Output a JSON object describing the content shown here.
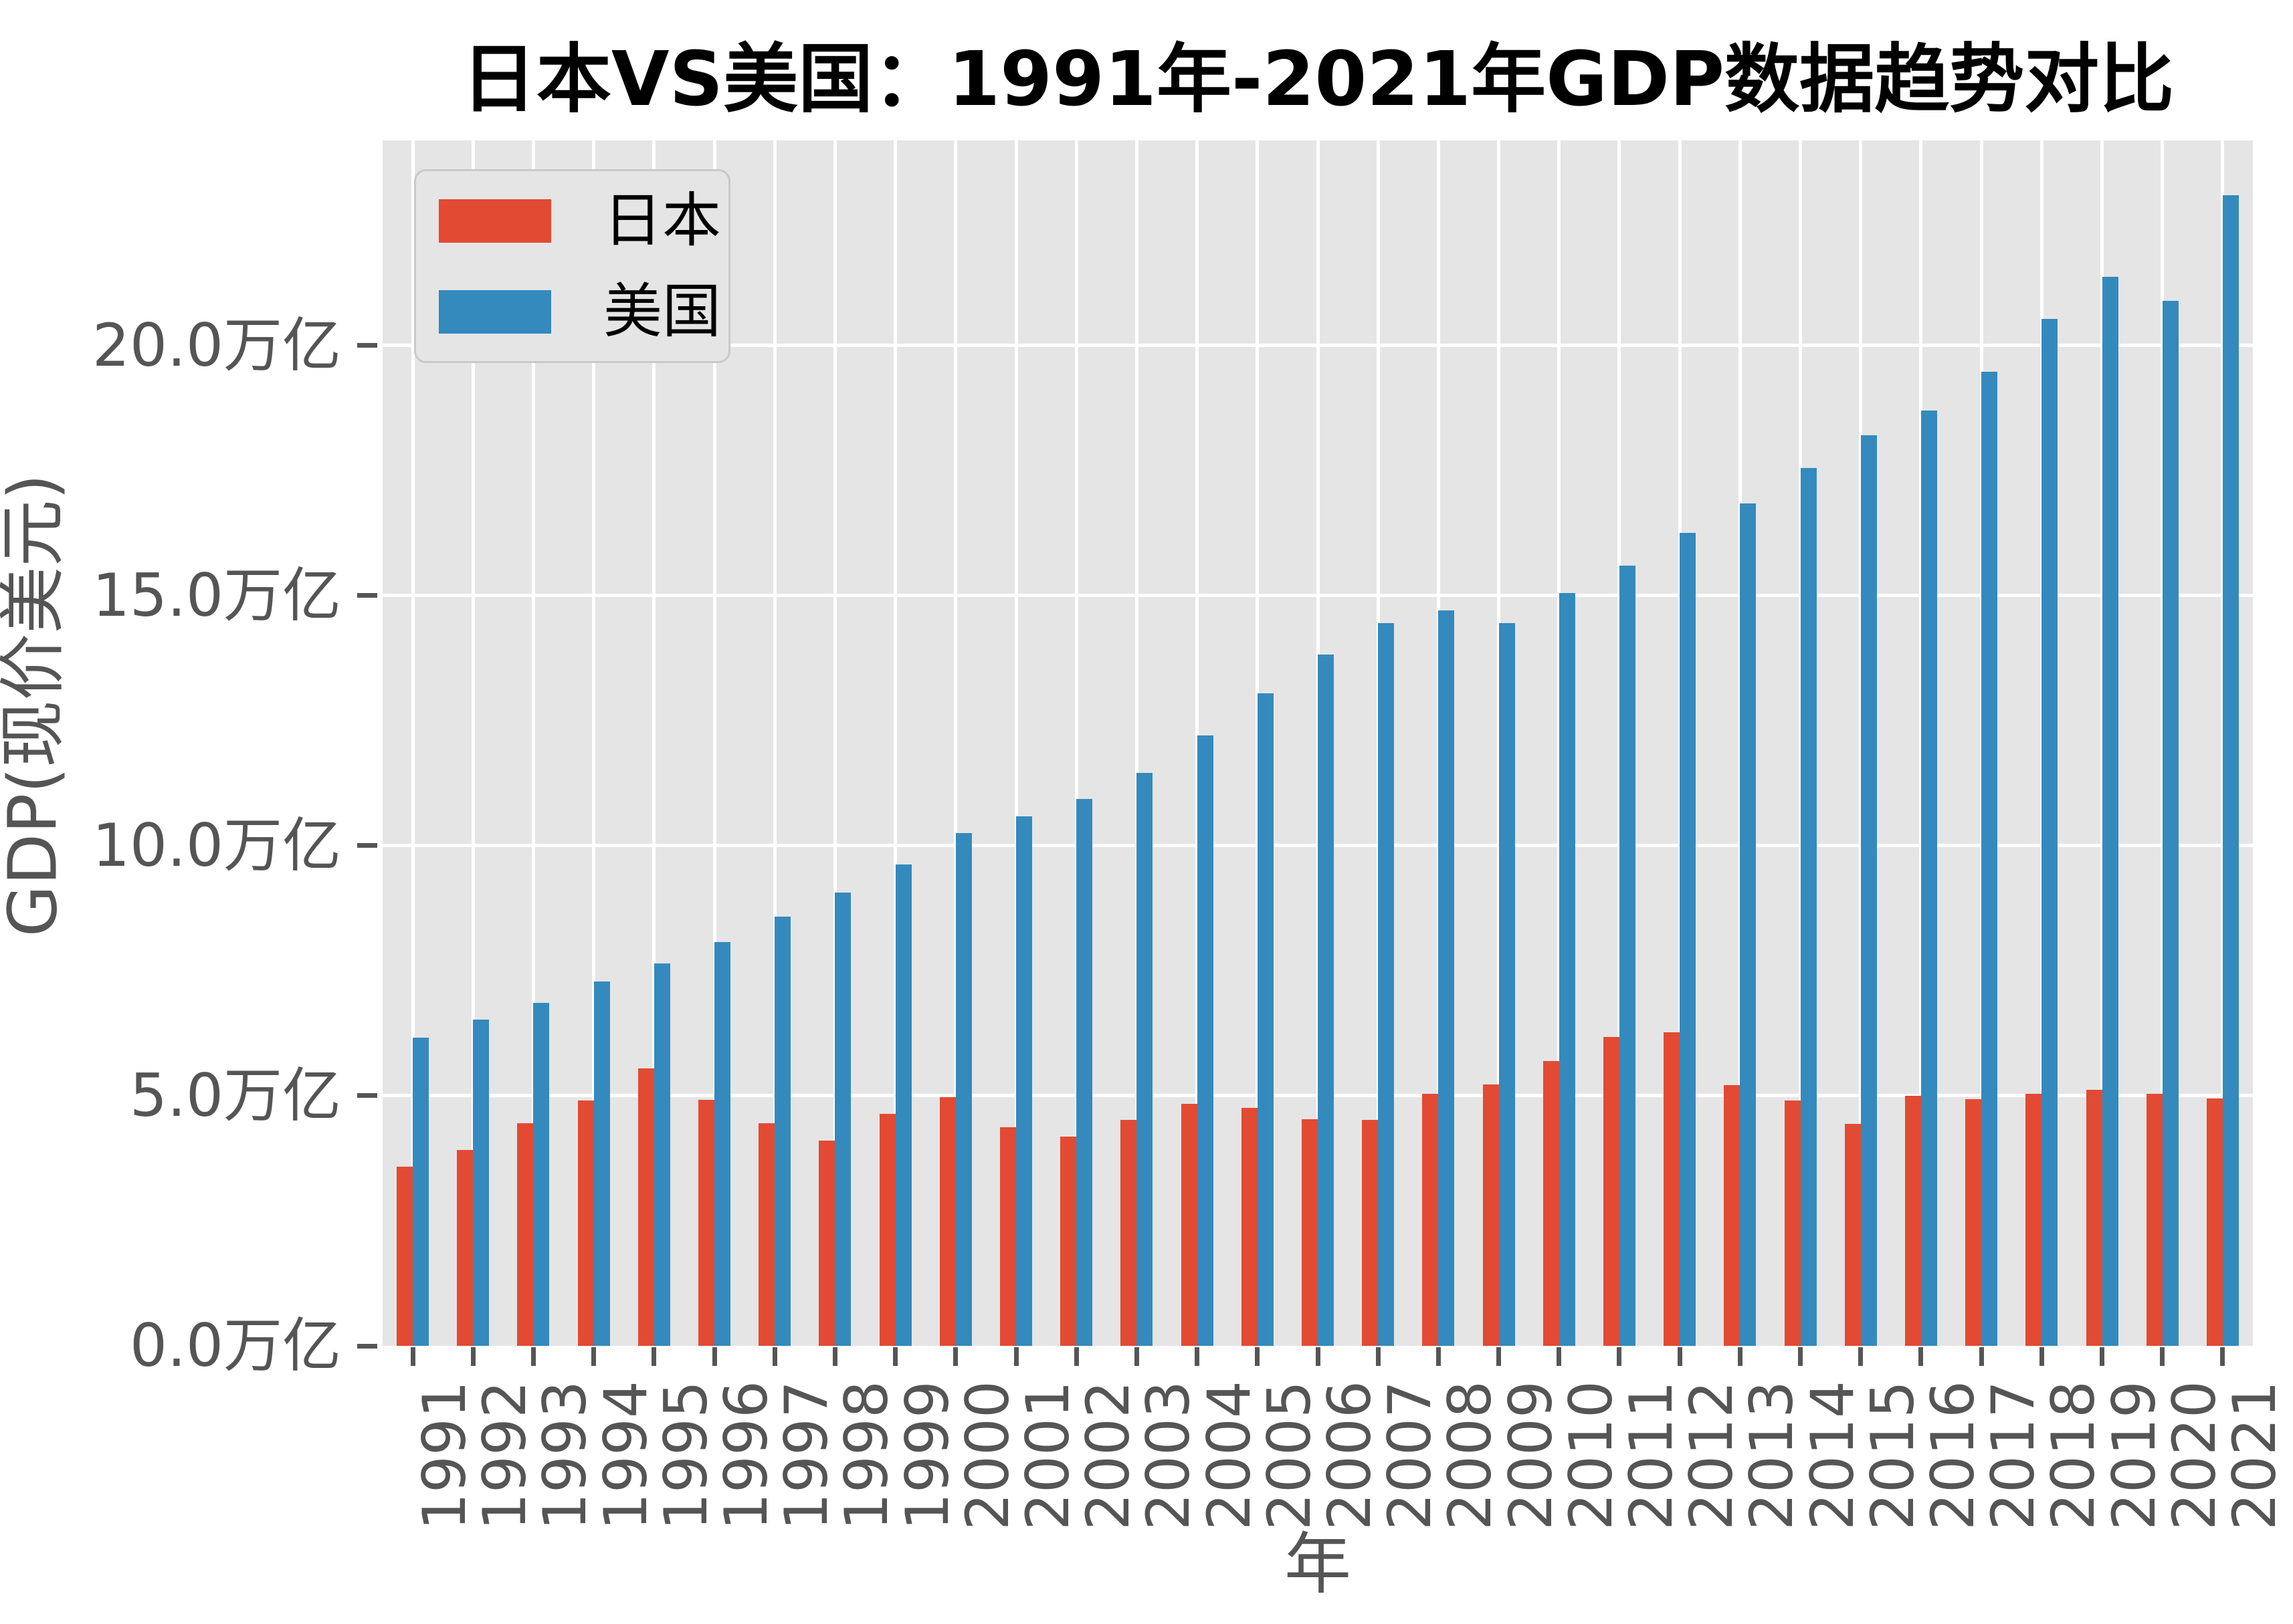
{
  "title": "日本VS美国：1991年-2021年GDP数据趋势对比",
  "chart_data": {
    "type": "bar",
    "title": "日本VS美国：1991年-2021年GDP数据趋势对比",
    "xlabel": "年",
    "ylabel": "GDP(现价美元)",
    "unit_note": "values in trillions (万亿) of current US dollars, read from axis",
    "categories": [
      "1991",
      "1992",
      "1993",
      "1994",
      "1995",
      "1996",
      "1997",
      "1998",
      "1999",
      "2000",
      "2001",
      "2002",
      "2003",
      "2004",
      "2005",
      "2006",
      "2007",
      "2008",
      "2009",
      "2010",
      "2011",
      "2012",
      "2013",
      "2014",
      "2015",
      "2016",
      "2017",
      "2018",
      "2019",
      "2020",
      "2021"
    ],
    "series": [
      {
        "name": "日本",
        "color": "#E24A33",
        "values": [
          3.58,
          3.91,
          4.45,
          4.91,
          5.55,
          4.92,
          4.45,
          4.1,
          4.64,
          4.97,
          4.37,
          4.18,
          4.52,
          4.84,
          4.76,
          4.53,
          4.52,
          5.04,
          5.23,
          5.7,
          6.17,
          6.27,
          5.21,
          4.9,
          4.44,
          5.0,
          4.93,
          5.04,
          5.12,
          5.04,
          4.94
        ]
      },
      {
        "name": "美国",
        "color": "#348ABD",
        "values": [
          6.16,
          6.52,
          6.86,
          7.29,
          7.64,
          8.07,
          8.58,
          9.06,
          9.63,
          10.25,
          10.58,
          10.94,
          11.46,
          12.21,
          13.04,
          13.82,
          14.45,
          14.71,
          14.45,
          15.05,
          15.6,
          16.25,
          16.84,
          17.55,
          18.21,
          18.7,
          19.48,
          20.53,
          21.38,
          20.89,
          23.0
        ]
      }
    ],
    "ylim": [
      0,
      24.1
    ],
    "yticks": [
      {
        "value": 0,
        "label": "0.0万亿"
      },
      {
        "value": 5,
        "label": "5.0万亿"
      },
      {
        "value": 10,
        "label": "10.0万亿"
      },
      {
        "value": 15,
        "label": "15.0万亿"
      },
      {
        "value": 20,
        "label": "20.0万亿"
      }
    ],
    "grid": true,
    "grid_color": "#FFFFFF",
    "plot_bg": "#E5E5E5",
    "tick_color": "#555555",
    "legend_position": "upper left"
  },
  "legend": {
    "items": [
      {
        "label": "日本",
        "color": "#E24A33"
      },
      {
        "label": "美国",
        "color": "#348ABD"
      }
    ]
  }
}
